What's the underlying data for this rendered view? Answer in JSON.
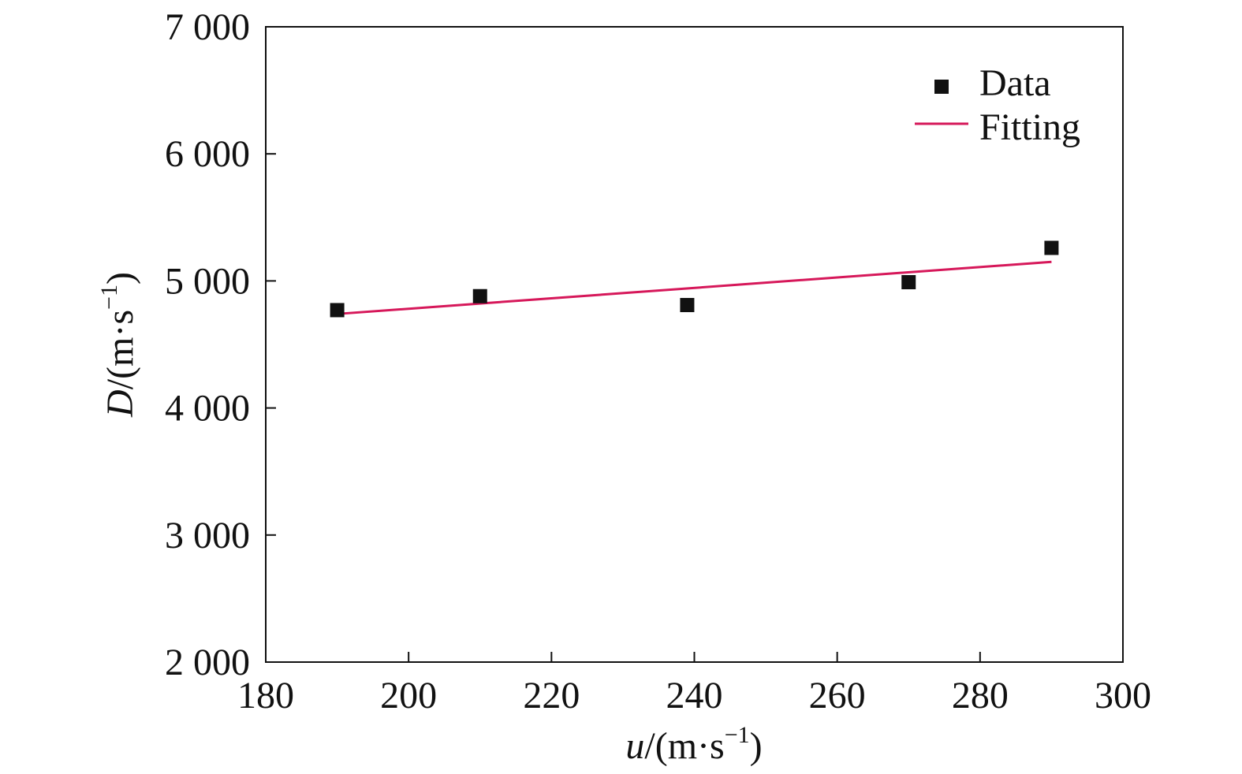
{
  "chart_data": {
    "type": "scatter",
    "xlabel": {
      "var": "u",
      "unit": "/(m·s",
      "exp": "−1",
      "close": ")"
    },
    "ylabel": {
      "var": "D",
      "unit": "/(m·s",
      "exp": "−1",
      "close": ")"
    },
    "xlim": [
      180,
      300
    ],
    "ylim": [
      2000,
      7000
    ],
    "xticks": [
      180,
      200,
      220,
      240,
      260,
      280,
      300
    ],
    "yticks": [
      2000,
      3000,
      4000,
      5000,
      6000,
      7000
    ],
    "xtick_labels": [
      "180",
      "200",
      "220",
      "240",
      "260",
      "280",
      "300"
    ],
    "ytick_labels": [
      "2 000",
      "3 000",
      "4 000",
      "5 000",
      "6 000",
      "7 000"
    ],
    "grid": false,
    "legend_position": "top-right",
    "series": [
      {
        "name": "Data",
        "kind": "scatter",
        "marker": "square",
        "color": "#111111",
        "x": [
          190,
          210,
          239,
          270,
          290
        ],
        "y": [
          4770,
          4880,
          4810,
          4990,
          5260
        ]
      },
      {
        "name": "Fitting",
        "kind": "line",
        "color": "#d6185a",
        "x": [
          190,
          290
        ],
        "y": [
          4740,
          5150
        ]
      }
    ]
  }
}
